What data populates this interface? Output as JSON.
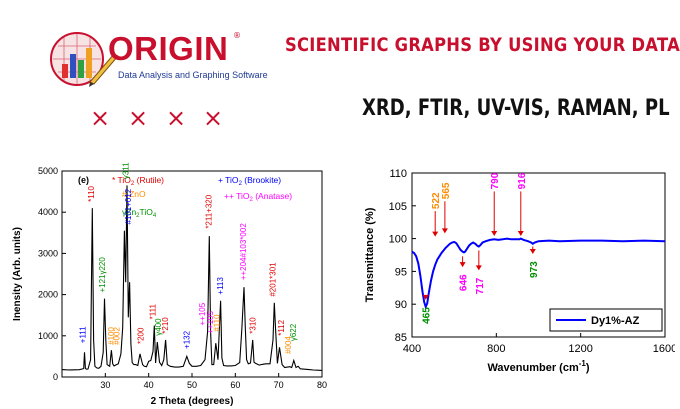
{
  "logo": {
    "word": "ORIGIN",
    "registered": "®",
    "tagline": "Data Analysis and Graphing Software"
  },
  "headline": "SCIENTIFIC GRAPHS BY USING YOUR DATA",
  "subhead": "XRD, FTIR, UV-VIS, RAMAN, PL",
  "marks": [
    "×",
    "×",
    "×",
    "×"
  ],
  "colors": {
    "accent": "#c8102e",
    "xrd_line": "#000000",
    "ftir_line": "#0000ff"
  },
  "chart_data": [
    {
      "type": "line",
      "panel_label": "(e)",
      "xlabel": "2 Theta (degrees)",
      "ylabel": "Inensity (Arb. units)",
      "xlim": [
        20,
        80
      ],
      "ylim": [
        0,
        5000
      ],
      "xticks": [
        "30",
        "40",
        "50",
        "60",
        "70",
        "80"
      ],
      "yticks": [
        "0",
        "1000",
        "2000",
        "3000",
        "4000",
        "5000"
      ],
      "legend": [
        {
          "sym": "*",
          "text": " TiO",
          "sub": "2",
          "tail": " (Rutile)",
          "color": "#e00000"
        },
        {
          "sym": "+",
          "text": " TiO",
          "sub": "2",
          "tail": " (Brookite)",
          "color": "#0000ff"
        },
        {
          "sym": "#",
          "text": " ZnO",
          "sub": "",
          "tail": "",
          "color": "#ff8c00"
        },
        {
          "sym": "++",
          "text": " TiO",
          "sub": "2",
          "tail": " (Anatase)",
          "color": "#ff00ff"
        },
        {
          "sym": "γ",
          "text": "Zn",
          "sub": "2",
          "tail": "TiO",
          "sub2": "4",
          "color": "#009000"
        }
      ],
      "x": [
        20,
        21,
        22,
        23,
        24,
        25,
        25.2,
        25.4,
        25.6,
        26,
        26.6,
        27.0,
        27.3,
        27.6,
        28,
        28.5,
        29,
        29.5,
        29.8,
        30.1,
        30.4,
        31,
        31.4,
        31.7,
        32,
        33,
        33.6,
        34,
        34.4,
        34.7,
        35.0,
        35.3,
        35.6,
        35.9,
        36.2,
        36.6,
        37,
        37.5,
        38,
        38.6,
        39,
        39.5,
        40,
        40.5,
        41,
        41.3,
        41.6,
        42,
        42.5,
        43,
        43.5,
        43.9,
        44.3,
        45,
        46,
        47,
        48,
        48.8,
        49.4,
        50,
        51,
        52,
        53,
        53.6,
        54.0,
        54.3,
        54.6,
        55,
        55.5,
        56,
        56.6,
        56.9,
        57.3,
        58,
        59,
        60,
        61,
        61.5,
        62,
        62.3,
        62.6,
        63,
        63.5,
        64,
        64.3,
        64.7,
        65.5,
        66,
        67,
        68,
        68.7,
        69.0,
        69.3,
        69.7,
        70.2,
        70.8,
        71.4,
        72,
        72.6,
        73,
        73.5,
        74,
        74.5,
        75,
        76,
        77,
        78,
        79,
        80
      ],
      "y": [
        180,
        175,
        172,
        175,
        178,
        205,
        600,
        210,
        190,
        195,
        420,
        4100,
        900,
        260,
        220,
        210,
        260,
        600,
        1900,
        900,
        300,
        260,
        650,
        320,
        270,
        320,
        560,
        1200,
        3550,
        2300,
        4650,
        1450,
        2300,
        800,
        350,
        300,
        300,
        280,
        560,
        300,
        260,
        250,
        380,
        400,
        620,
        1250,
        340,
        850,
        360,
        280,
        420,
        900,
        300,
        260,
        240,
        240,
        260,
        500,
        330,
        260,
        260,
        280,
        420,
        1100,
        3420,
        1100,
        300,
        300,
        820,
        420,
        1850,
        460,
        280,
        270,
        270,
        280,
        350,
        1150,
        2180,
        1200,
        420,
        320,
        340,
        900,
        360,
        330,
        290,
        300,
        320,
        320,
        900,
        1800,
        1150,
        330,
        720,
        300,
        230,
        240,
        250,
        230,
        400,
        230,
        260,
        200,
        190,
        180,
        170,
        165,
        160
      ],
      "annotations": [
        {
          "text": "*110",
          "x": 27.4,
          "y": 4250,
          "color": "#e00000",
          "rot": -90
        },
        {
          "text": "+121γ220",
          "x": 29.9,
          "y": 2050,
          "color": "#009000",
          "rot": -90
        },
        {
          "text": "+111",
          "x": 25.4,
          "y": 820,
          "color": "#0000ff",
          "rot": -90
        },
        {
          "text": "#100",
          "x": 32.0,
          "y": 780,
          "color": "#ff8c00",
          "rot": -90
        },
        {
          "text": "#002",
          "x": 33.3,
          "y": 780,
          "color": "#ff8c00",
          "rot": -90
        },
        {
          "text": "γ311",
          "x": 35.3,
          "y": 4800,
          "color": "#009000",
          "rot": -90
        },
        {
          "text": "#101+012",
          "x": 35.9,
          "y": 3700,
          "color": "#0000ff",
          "rot": -90
        },
        {
          "text": "*200",
          "x": 38.8,
          "y": 800,
          "color": "#e00000",
          "rot": -90
        },
        {
          "text": "*111",
          "x": 41.6,
          "y": 1400,
          "color": "#e00000",
          "rot": -90
        },
        {
          "text": "γ400",
          "x": 42.8,
          "y": 1000,
          "color": "#009000",
          "rot": -90
        },
        {
          "text": "*210",
          "x": 44.5,
          "y": 1050,
          "color": "#e00000",
          "rot": -90
        },
        {
          "text": "+132",
          "x": 49.4,
          "y": 680,
          "color": "#0000ff",
          "rot": -90
        },
        {
          "text": "++105",
          "x": 53.0,
          "y": 1250,
          "color": "#ff00ff",
          "rot": -90
        },
        {
          "text": "++105",
          "x": 54.8,
          "y": 1050,
          "color": "#ff00ff",
          "rot": -90
        },
        {
          "text": "*211+320",
          "x": 54.5,
          "y": 3600,
          "color": "#e00000",
          "rot": -90
        },
        {
          "text": "#110",
          "x": 56.4,
          "y": 1100,
          "color": "#ff8c00",
          "rot": -90
        },
        {
          "text": "+113",
          "x": 57.2,
          "y": 2000,
          "color": "#0000ff",
          "rot": -90
        },
        {
          "text": "++204#103*002",
          "x": 62.5,
          "y": 2350,
          "color": "#ff00ff",
          "rot": -90
        },
        {
          "text": "*310",
          "x": 64.7,
          "y": 1050,
          "color": "#e00000",
          "rot": -90
        },
        {
          "text": "#201*301",
          "x": 69.3,
          "y": 1950,
          "color": "#e00000",
          "rot": -90
        },
        {
          "text": "*112",
          "x": 71.2,
          "y": 1000,
          "color": "#e00000",
          "rot": -90
        },
        {
          "text": "#004",
          "x": 72.8,
          "y": 560,
          "color": "#ff8c00",
          "rot": -90
        },
        {
          "text": "γ622",
          "x": 74.0,
          "y": 870,
          "color": "#009000",
          "rot": -90
        }
      ]
    },
    {
      "type": "line",
      "xlabel": "Wavenumber (cm",
      "xlabel_sup": "-1",
      "xlabel_tail": ")",
      "ylabel": "Transmittance (%)",
      "xlim": [
        400,
        1600
      ],
      "ylim": [
        85,
        110
      ],
      "xticks": [
        "400",
        "800",
        "1200",
        "1600"
      ],
      "yticks": [
        "85",
        "90",
        "95",
        "100",
        "105",
        "110"
      ],
      "series_name": "Dy1%-AZ",
      "x": [
        400,
        410,
        420,
        430,
        440,
        450,
        458,
        465,
        472,
        480,
        490,
        500,
        510,
        520,
        530,
        540,
        550,
        560,
        570,
        580,
        590,
        600,
        610,
        620,
        630,
        640,
        646,
        652,
        660,
        670,
        680,
        690,
        700,
        710,
        717,
        724,
        735,
        750,
        770,
        790,
        810,
        830,
        850,
        870,
        890,
        910,
        916,
        930,
        950,
        965,
        973,
        982,
        1000,
        1050,
        1100,
        1200,
        1300,
        1400,
        1500,
        1600
      ],
      "y": [
        98.0,
        97.8,
        97.3,
        96.2,
        94.3,
        91.9,
        90.3,
        89.6,
        90.1,
        91.8,
        93.6,
        95.0,
        96.0,
        96.8,
        97.3,
        97.8,
        98.2,
        98.6,
        98.9,
        99.2,
        99.4,
        99.5,
        99.3,
        98.8,
        98.3,
        98.0,
        97.9,
        98.0,
        98.4,
        98.9,
        99.2,
        99.4,
        99.2,
        98.9,
        98.8,
        99.0,
        99.4,
        99.6,
        99.8,
        99.9,
        99.8,
        99.9,
        100.0,
        99.9,
        99.9,
        99.9,
        100.0,
        99.8,
        99.6,
        99.4,
        99.2,
        99.4,
        99.6,
        99.7,
        99.6,
        99.7,
        99.7,
        99.6,
        99.7,
        99.6
      ],
      "annotations": [
        {
          "text": "522",
          "x": 510,
          "y": 104.5,
          "arrow_to": 100.3,
          "color": "#ff8c00"
        },
        {
          "text": "565",
          "x": 556,
          "y": 106.0,
          "arrow_to": 100.8,
          "color": "#ff8c00"
        },
        {
          "text": "790",
          "x": 790,
          "y": 107.5,
          "arrow_to": 100.4,
          "color": "#ff00ff"
        },
        {
          "text": "916",
          "x": 916,
          "y": 107.5,
          "arrow_to": 100.4,
          "color": "#ff00ff"
        },
        {
          "text": "646",
          "x": 640,
          "y": 92.0,
          "arrow_from": 97.3,
          "color": "#ff00ff"
        },
        {
          "text": "717",
          "x": 717,
          "y": 91.5,
          "arrow_from": 98.2,
          "color": "#ff00ff"
        },
        {
          "text": "973",
          "x": 973,
          "y": 94.0,
          "arrow_from": 98.8,
          "color": "#009000"
        },
        {
          "text": "465",
          "x": 465,
          "y": 87.0,
          "arrow_from": 91.0,
          "color": "#009000"
        }
      ]
    }
  ]
}
